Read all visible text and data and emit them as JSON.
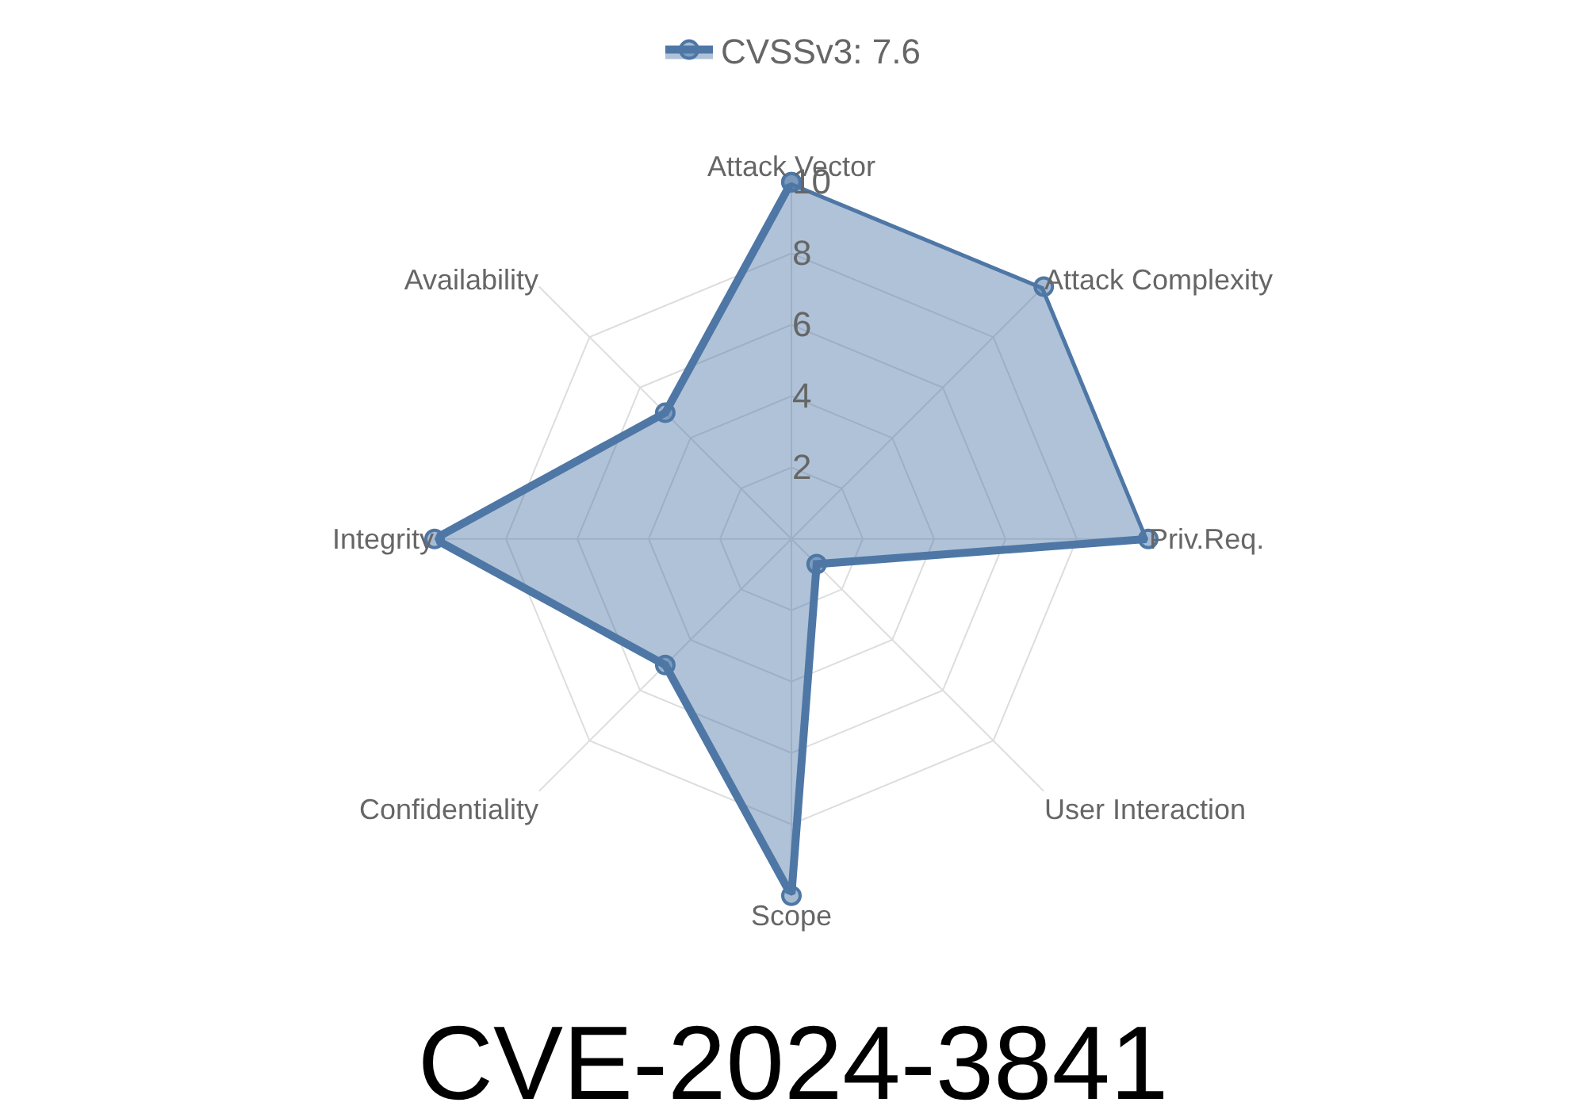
{
  "chart_data": {
    "type": "radar",
    "title": "CVE-2024-3841",
    "categories": [
      "Attack Vector",
      "Attack Complexity",
      "Priv.Req.",
      "User Interaction",
      "Scope",
      "Confidentiality",
      "Integrity",
      "Availability"
    ],
    "series": [
      {
        "name": "CVSSv3: 7.6",
        "color": "#4e77a6",
        "values": [
          10,
          10,
          10,
          1,
          10,
          5,
          10,
          5
        ]
      }
    ],
    "ylim": [
      0,
      10
    ],
    "yticks": [
      2,
      4,
      6,
      8,
      10
    ],
    "grid": true,
    "legend": "top",
    "marker": "circle",
    "line_style": "solid"
  }
}
